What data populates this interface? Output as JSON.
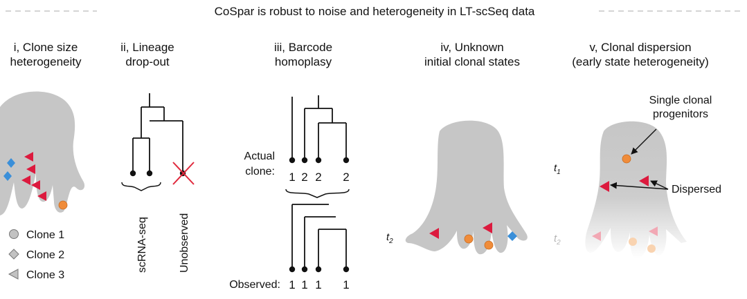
{
  "title": "CoSpar is robust to noise and heterogeneity in LT-scSeq data",
  "colors": {
    "landscape": "#c6c6c6",
    "clone1": "#f08c3a",
    "clone2": "#3a8fd9",
    "clone3": "#dc1a3e",
    "legend_marker": "#c2c2c2",
    "cross": "#e0283c"
  },
  "panels": {
    "p1": {
      "title_lines": [
        "i, Clone size",
        "heterogeneity"
      ],
      "legend": [
        {
          "label": "Clone 1",
          "icon": "circle-icon"
        },
        {
          "label": "Clone 2",
          "icon": "diamond-icon"
        },
        {
          "label": "Clone 3",
          "icon": "triangle-icon"
        }
      ]
    },
    "p2": {
      "title_lines": [
        "ii, Lineage",
        "drop-out"
      ],
      "label_seq": "scRNA-seq",
      "label_unobserved": "Unobserved"
    },
    "p3": {
      "title_lines": [
        "iii, Barcode",
        "homoplasy"
      ],
      "actual_label_lines": [
        "Actual",
        "clone:"
      ],
      "actual_values": [
        "1",
        "2",
        "2",
        "2"
      ],
      "observed_label": "Observed:",
      "observed_values": [
        "1",
        "1",
        "1",
        "1"
      ]
    },
    "p4": {
      "title_lines": [
        "iv, Unknown",
        "initial clonal states"
      ],
      "time_label": "t",
      "time_sub": "2"
    },
    "p5": {
      "title_lines": [
        "v, Clonal dispersion",
        "(early state heterogeneity)"
      ],
      "progenitor_label_lines": [
        "Single clonal",
        "progenitors"
      ],
      "dispersed_label": "Dispersed",
      "t1_label": "t",
      "t1_sub": "1",
      "t2_label": "t",
      "t2_sub": "2"
    }
  }
}
